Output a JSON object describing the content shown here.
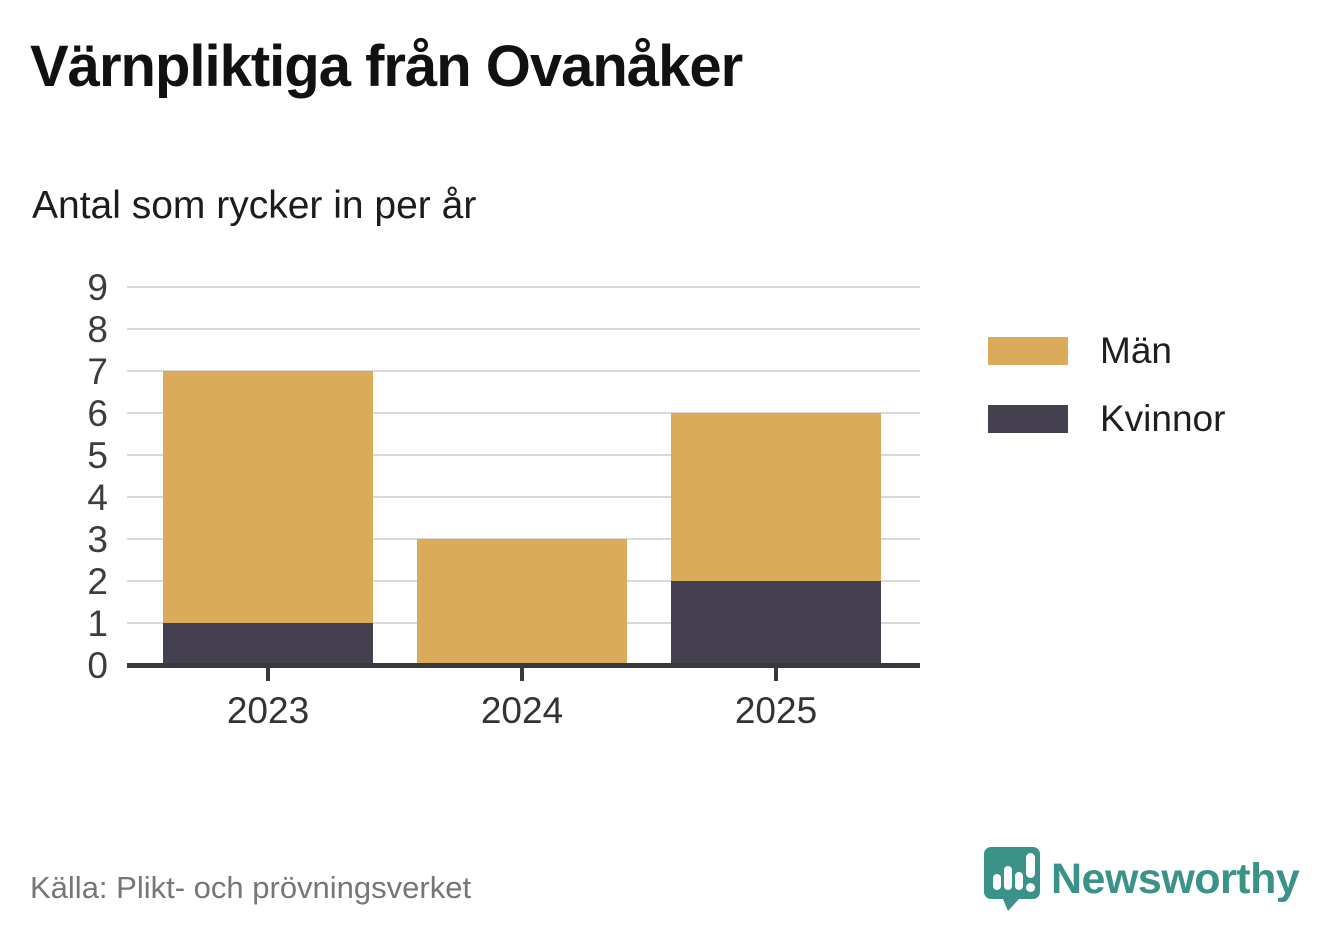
{
  "title": "Värnpliktiga från Ovanåker",
  "subtitle": "Antal som rycker in per år",
  "source": "Källa: Plikt- och prövningsverket",
  "brand": {
    "name": "Newsworthy",
    "color": "#3b9289",
    "icon": "newsworthy-speech-bubble-barchart-icon"
  },
  "chart_data": {
    "type": "bar",
    "stacked": true,
    "title": "Värnpliktiga från Ovanåker",
    "subtitle": "Antal som rycker in per år",
    "categories": [
      "2023",
      "2024",
      "2025"
    ],
    "series": [
      {
        "name": "Kvinnor",
        "color": "#454050",
        "values": [
          1,
          0,
          2
        ]
      },
      {
        "name": "Män",
        "color": "#d9ab5b",
        "values": [
          6,
          3,
          4
        ]
      }
    ],
    "legend_order": [
      "Män",
      "Kvinnor"
    ],
    "totals": [
      7,
      3,
      6
    ],
    "xlabel": "",
    "ylabel": "",
    "ylim": [
      0,
      9
    ],
    "yticks": [
      0,
      1,
      2,
      3,
      4,
      5,
      6,
      7,
      8,
      9
    ],
    "grid": true,
    "legend_position": "right-top",
    "gridline_color": "#d9d9d9",
    "axis_color": "#39383f",
    "tick_label_color": "#3d3d3d"
  }
}
